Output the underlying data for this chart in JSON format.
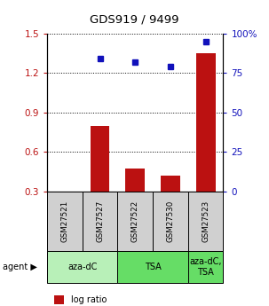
{
  "title": "GDS919 / 9499",
  "samples": [
    "GSM27521",
    "GSM27527",
    "GSM27522",
    "GSM27530",
    "GSM27523"
  ],
  "log_ratios": [
    0.3,
    0.8,
    0.47,
    0.42,
    1.35
  ],
  "percentile_ranks": [
    null,
    84.0,
    82.0,
    79.0,
    95.0
  ],
  "ylim_left": [
    0.3,
    1.5
  ],
  "ylim_right": [
    0,
    100
  ],
  "yticks_left": [
    0.3,
    0.6,
    0.9,
    1.2,
    1.5
  ],
  "yticks_right": [
    0,
    25,
    50,
    75,
    100
  ],
  "ytick_labels_right": [
    "0",
    "25",
    "50",
    "75",
    "100%"
  ],
  "bar_color": "#bb1111",
  "dot_color": "#1111bb",
  "background_color": "#ffffff",
  "label_area_color": "#d0d0d0",
  "agent_area_color_light": "#b8f0b8",
  "agent_area_color_medium": "#66dd66"
}
